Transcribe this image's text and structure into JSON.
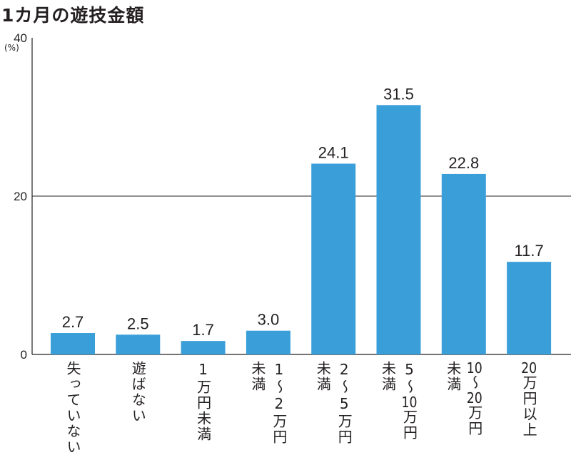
{
  "chart_data": {
    "type": "bar",
    "title": "1カ月の遊技金額",
    "ylabel": "(%)",
    "ylim": [
      0,
      40
    ],
    "yticks": [
      0,
      20,
      40
    ],
    "grid": "y=20 only",
    "categories": [
      {
        "columns": [
          "失っていない"
        ]
      },
      {
        "columns": [
          "遊ばない"
        ]
      },
      {
        "columns": [
          "1",
          "万円未満"
        ],
        "stacked": true
      },
      {
        "columns": [
          "1～2万円",
          "未満"
        ]
      },
      {
        "columns": [
          "2～5万円",
          "未満"
        ]
      },
      {
        "columns": [
          "5～10万円",
          "未満"
        ]
      },
      {
        "columns": [
          "10～20万円",
          "未満"
        ]
      },
      {
        "columns": [
          "20万円以上"
        ]
      }
    ],
    "values": [
      2.7,
      2.5,
      1.7,
      3.0,
      24.1,
      31.5,
      22.8,
      11.7
    ],
    "value_labels": [
      "2.7",
      "2.5",
      "1.7",
      "3.0",
      "24.1",
      "31.5",
      "22.8",
      "11.7"
    ],
    "bar_color": "#3a9fd9"
  }
}
